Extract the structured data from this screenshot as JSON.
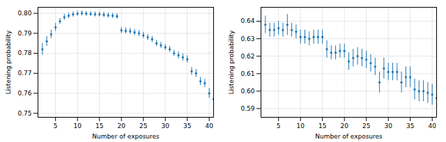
{
  "chart_data": [
    {
      "type": "scatter",
      "xlabel": "Number of exposures",
      "ylabel": "Listening probability",
      "x": [
        2,
        3,
        4,
        5,
        6,
        7,
        8,
        9,
        10,
        11,
        12,
        13,
        14,
        15,
        16,
        17,
        18,
        19,
        20,
        21,
        22,
        23,
        24,
        25,
        26,
        27,
        28,
        29,
        30,
        31,
        32,
        33,
        34,
        35,
        36,
        37,
        38,
        39,
        40,
        41
      ],
      "values": [
        0.782,
        0.786,
        0.7895,
        0.793,
        0.796,
        0.798,
        0.7988,
        0.7995,
        0.7998,
        0.8,
        0.7998,
        0.7997,
        0.7995,
        0.7995,
        0.7993,
        0.799,
        0.7988,
        0.7985,
        0.7915,
        0.7912,
        0.791,
        0.7905,
        0.79,
        0.789,
        0.788,
        0.787,
        0.785,
        0.784,
        0.783,
        0.782,
        0.78,
        0.779,
        0.778,
        0.777,
        0.771,
        0.77,
        0.766,
        0.765,
        0.76,
        0.757
      ],
      "yerr": [
        0.003,
        0.0025,
        0.002,
        0.002,
        0.0015,
        0.0015,
        0.0013,
        0.0013,
        0.0012,
        0.0012,
        0.0012,
        0.0012,
        0.0012,
        0.0012,
        0.0013,
        0.0013,
        0.0013,
        0.0013,
        0.0015,
        0.0015,
        0.0015,
        0.0015,
        0.0015,
        0.0015,
        0.0015,
        0.0015,
        0.0015,
        0.0015,
        0.0015,
        0.0015,
        0.0015,
        0.0018,
        0.0018,
        0.0018,
        0.002,
        0.002,
        0.002,
        0.002,
        0.0025,
        0.003
      ],
      "color": "#1f77b4",
      "xlim": [
        1,
        41
      ],
      "xticks": [
        5,
        10,
        15,
        20,
        25,
        30,
        35,
        40
      ],
      "ylim": [
        0.748,
        0.803
      ],
      "yticks": [
        0.75,
        0.76,
        0.77,
        0.78,
        0.79,
        {
          "value": 0.8,
          "label": "0.80"
        }
      ],
      "grid": true
    },
    {
      "type": "scatter",
      "xlabel": "Number of exposures",
      "ylabel": "Listening probability",
      "x": [
        2,
        3,
        4,
        5,
        6,
        7,
        8,
        9,
        10,
        11,
        12,
        13,
        14,
        15,
        16,
        17,
        18,
        19,
        20,
        21,
        22,
        23,
        24,
        25,
        26,
        27,
        28,
        29,
        30,
        31,
        32,
        33,
        34,
        35,
        36,
        37,
        38,
        39,
        40,
        41
      ],
      "values": [
        0.638,
        0.635,
        0.635,
        0.636,
        0.635,
        0.638,
        0.635,
        0.634,
        0.631,
        0.631,
        0.63,
        0.631,
        0.631,
        0.631,
        0.624,
        0.622,
        0.622,
        0.623,
        0.623,
        0.617,
        0.619,
        0.62,
        0.619,
        0.618,
        0.616,
        0.614,
        0.605,
        0.613,
        0.611,
        0.611,
        0.611,
        0.605,
        0.608,
        0.608,
        0.601,
        0.6,
        0.6,
        0.599,
        0.598,
        0.596
      ],
      "yerr": [
        0.005,
        0.004,
        0.004,
        0.004,
        0.004,
        0.006,
        0.004,
        0.004,
        0.004,
        0.004,
        0.004,
        0.004,
        0.004,
        0.004,
        0.005,
        0.004,
        0.004,
        0.004,
        0.004,
        0.005,
        0.005,
        0.005,
        0.005,
        0.005,
        0.005,
        0.005,
        0.006,
        0.006,
        0.005,
        0.005,
        0.005,
        0.006,
        0.006,
        0.006,
        0.006,
        0.006,
        0.006,
        0.006,
        0.006,
        0.007
      ],
      "color": "#1f77b4",
      "xlim": [
        1,
        41
      ],
      "xticks": [
        5,
        10,
        15,
        20,
        25,
        30,
        35,
        40
      ],
      "ylim": [
        0.585,
        0.648
      ],
      "yticks": [
        0.59,
        {
          "value": 0.6,
          "label": "0.60"
        },
        0.61,
        0.62,
        0.63,
        0.64
      ],
      "grid": true
    }
  ]
}
